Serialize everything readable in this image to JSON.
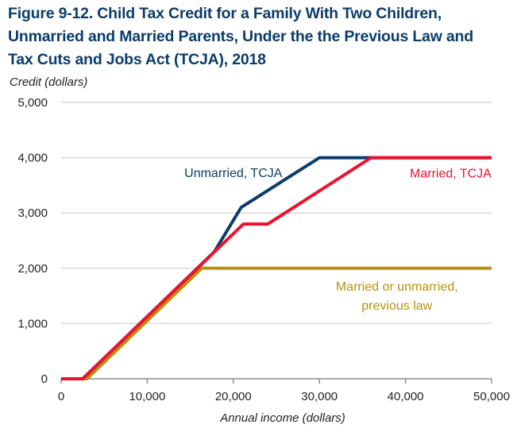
{
  "chart_data": {
    "type": "line",
    "title_lines": [
      "Figure 9-12. Child Tax Credit for a Family With Two Children,",
      "Unmarried and Married Parents, Under the the Previous Law and",
      "Tax Cuts and Jobs Act (TCJA), 2018"
    ],
    "title": "Figure 9-12. Child Tax Credit for a Family With Two Children, Unmarried and Married Parents, Under the the Previous Law and Tax Cuts and Jobs Act (TCJA), 2018",
    "ylabel": "Credit  (dollars)",
    "xlabel": "Annual income (dollars)",
    "xlim": [
      0,
      50000
    ],
    "ylim": [
      0,
      5000
    ],
    "x_ticks": [
      0,
      10000,
      20000,
      30000,
      40000,
      50000
    ],
    "x_tick_labels": [
      "0",
      "10,000",
      "20,000",
      "30,000",
      "40,000",
      "50,000"
    ],
    "y_ticks": [
      0,
      1000,
      2000,
      3000,
      4000,
      5000
    ],
    "y_tick_labels": [
      "0",
      "1,000",
      "2,000",
      "3,000",
      "4,000",
      "5,000"
    ],
    "grid": "horizontal",
    "series": [
      {
        "name": "Married or unmarried, previous law",
        "label_lines": [
          "Married or unmarried,",
          "previous law"
        ],
        "color": "#b8910f",
        "points": [
          [
            0,
            0
          ],
          [
            3000,
            0
          ],
          [
            16333,
            2000
          ],
          [
            50000,
            2000
          ]
        ]
      },
      {
        "name": "Unmarried, TCJA",
        "label_lines": [
          "Unmarried, TCJA"
        ],
        "color": "#0b3c6b",
        "points": [
          [
            0,
            0
          ],
          [
            2500,
            0
          ],
          [
            17800,
            2300
          ],
          [
            20900,
            3100
          ],
          [
            30000,
            4000
          ],
          [
            50000,
            4000
          ]
        ]
      },
      {
        "name": "Married, TCJA",
        "label_lines": [
          "Married, TCJA"
        ],
        "color": "#f0102d",
        "points": [
          [
            0,
            0
          ],
          [
            2500,
            0
          ],
          [
            21167,
            2800
          ],
          [
            24000,
            2800
          ],
          [
            36000,
            4000
          ],
          [
            50000,
            4000
          ]
        ]
      }
    ]
  }
}
